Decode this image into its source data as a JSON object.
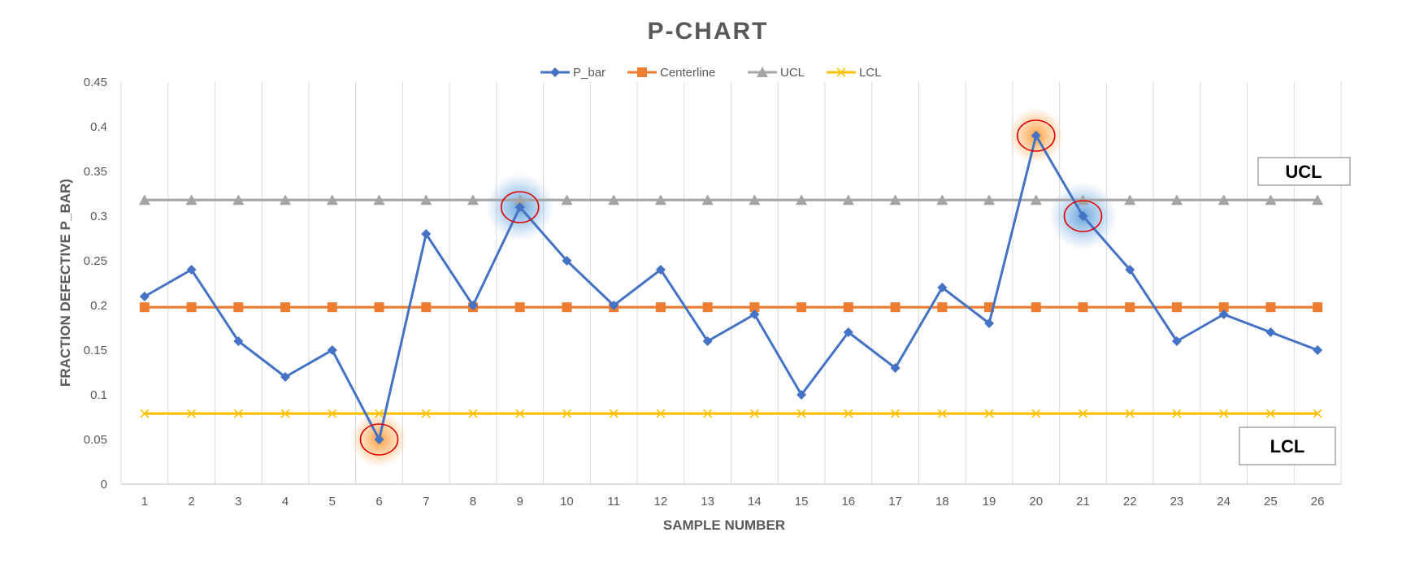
{
  "chart_data": {
    "type": "line",
    "title": "P-CHART",
    "xlabel": "SAMPLE NUMBER",
    "ylabel": "FRACTION DEFECTIVE P_BAR)",
    "ylim": [
      0,
      0.45
    ],
    "yticks": [
      "0",
      "0.05",
      "0.1",
      "0.15",
      "0.2",
      "0.25",
      "0.3",
      "0.35",
      "0.4",
      "0.45"
    ],
    "ytick_values": [
      0,
      0.05,
      0.1,
      0.15,
      0.2,
      0.25,
      0.3,
      0.35,
      0.4,
      0.45
    ],
    "categories": [
      "1",
      "2",
      "3",
      "4",
      "5",
      "6",
      "7",
      "8",
      "9",
      "10",
      "11",
      "12",
      "13",
      "14",
      "15",
      "16",
      "17",
      "18",
      "19",
      "20",
      "21",
      "22",
      "23",
      "24",
      "25",
      "26"
    ],
    "legend_position": "top-center",
    "grid": "vertical",
    "series": [
      {
        "name": "P_bar",
        "marker": "diamond",
        "color": "#4472C4",
        "values": [
          0.21,
          0.24,
          0.16,
          0.12,
          0.15,
          0.05,
          0.28,
          0.2,
          0.31,
          0.25,
          0.2,
          0.24,
          0.16,
          0.19,
          0.1,
          0.17,
          0.13,
          0.22,
          0.18,
          0.39,
          0.3,
          0.24,
          0.16,
          0.19,
          0.17,
          0.15
        ]
      },
      {
        "name": "Centerline",
        "marker": "square",
        "color": "#ED7D31",
        "values": [
          0.198,
          0.198,
          0.198,
          0.198,
          0.198,
          0.198,
          0.198,
          0.198,
          0.198,
          0.198,
          0.198,
          0.198,
          0.198,
          0.198,
          0.198,
          0.198,
          0.198,
          0.198,
          0.198,
          0.198,
          0.198,
          0.198,
          0.198,
          0.198,
          0.198,
          0.198
        ]
      },
      {
        "name": "UCL",
        "marker": "triangle",
        "color": "#A5A5A5",
        "values": [
          0.318,
          0.318,
          0.318,
          0.318,
          0.318,
          0.318,
          0.318,
          0.318,
          0.318,
          0.318,
          0.318,
          0.318,
          0.318,
          0.318,
          0.318,
          0.318,
          0.318,
          0.318,
          0.318,
          0.318,
          0.318,
          0.318,
          0.318,
          0.318,
          0.318,
          0.318
        ]
      },
      {
        "name": "LCL",
        "marker": "x",
        "color": "#FFC000",
        "values": [
          0.079,
          0.079,
          0.079,
          0.079,
          0.079,
          0.079,
          0.079,
          0.079,
          0.079,
          0.079,
          0.079,
          0.079,
          0.079,
          0.079,
          0.079,
          0.079,
          0.079,
          0.079,
          0.079,
          0.079,
          0.079,
          0.079,
          0.079,
          0.079,
          0.079,
          0.079
        ]
      }
    ],
    "annotations": [
      {
        "sample": "6",
        "value": 0.05,
        "style": "red-circle-orange-glow"
      },
      {
        "sample": "9",
        "value": 0.31,
        "style": "red-circle-blue-glow"
      },
      {
        "sample": "20",
        "value": 0.39,
        "style": "red-circle-orange-glow"
      },
      {
        "sample": "21",
        "value": 0.3,
        "style": "red-circle-blue-glow"
      }
    ],
    "limit_labels": {
      "ucl": "UCL",
      "lcl": "LCL"
    }
  }
}
